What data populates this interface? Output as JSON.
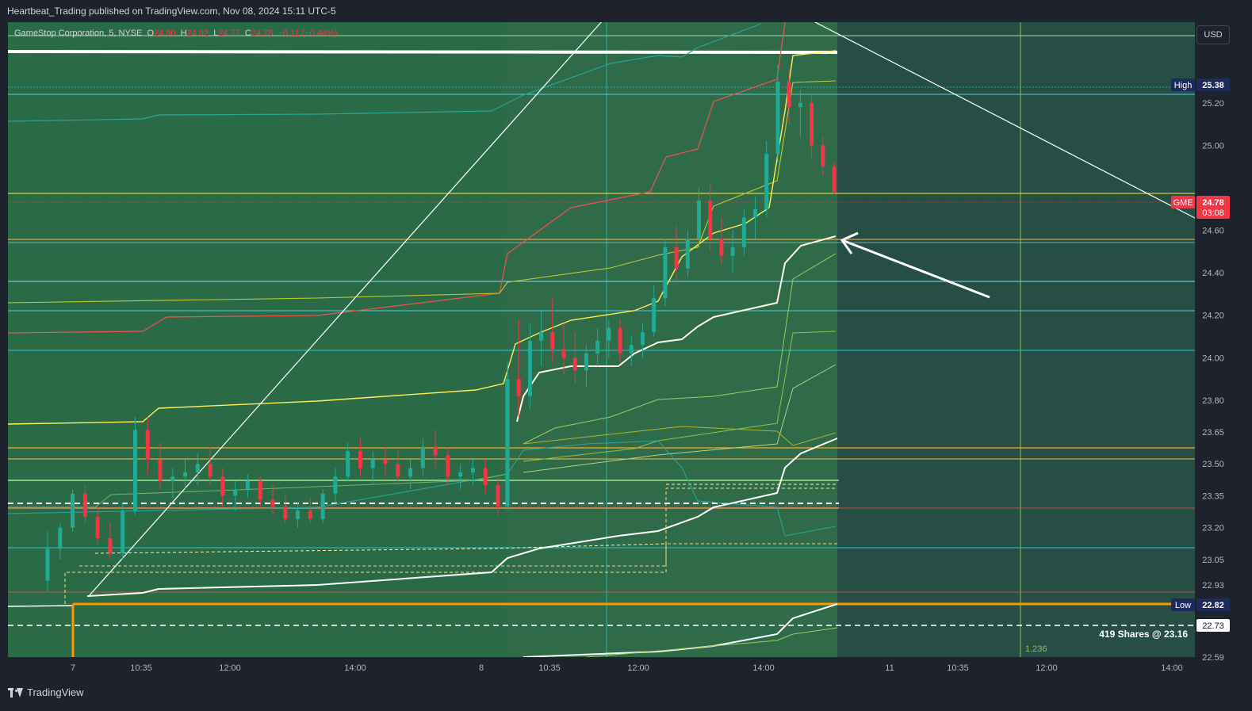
{
  "header": {
    "publish_text": "Heartbeat_Trading published on TradingView.com, Nov 08, 2024 15:11 UTC-5"
  },
  "legend": {
    "symbol": "GameStop Corporation, 5, NYSE",
    "o_label": "O",
    "o_value": "24.90",
    "h_label": "H",
    "h_value": "24.92",
    "l_label": "L",
    "l_value": "24.77",
    "c_label": "C",
    "c_value": "24.78",
    "change": "−0.11 (−0.44%)"
  },
  "currency": "USD",
  "footer": {
    "brand": "TradingView"
  },
  "colors": {
    "background_session": "#2b6a46",
    "background_future": "#264e45",
    "up_candle": "#22ab94",
    "down_candle": "#f23645",
    "axis_bg": "#1e222d"
  },
  "chart_data": {
    "type": "candlestick",
    "symbol": "GME",
    "interval": "5",
    "ylim": [
      22.59,
      25.58
    ],
    "y_ticks": [
      "25.20",
      "25.00",
      "24.60",
      "24.40",
      "24.20",
      "24.00",
      "23.80",
      "23.65",
      "23.50",
      "23.35",
      "23.20",
      "23.05",
      "22.93",
      "22.59"
    ],
    "x_ticks": [
      "7",
      "10:35",
      "12:00",
      "14:00",
      "8",
      "10:35",
      "12:00",
      "14:00",
      "11",
      "10:35",
      "12:00",
      "14:00"
    ],
    "price_labels": [
      {
        "label": "High",
        "value": "25.38"
      },
      {
        "label": "GME",
        "value": "24.78",
        "countdown": "03:08"
      },
      {
        "label": "Low",
        "value": "22.82"
      },
      {
        "label": "",
        "value": "22.73"
      }
    ],
    "annotations": [
      {
        "text": "419 Shares @ 23.16"
      },
      {
        "text": "1.236"
      }
    ],
    "candles": [
      [
        22.95,
        23.18,
        22.9,
        23.1
      ],
      [
        23.1,
        23.22,
        23.05,
        23.2
      ],
      [
        23.2,
        23.38,
        23.18,
        23.36
      ],
      [
        23.36,
        23.4,
        23.22,
        23.25
      ],
      [
        23.25,
        23.3,
        23.12,
        23.15
      ],
      [
        23.15,
        23.22,
        23.05,
        23.08
      ],
      [
        23.08,
        23.32,
        23.05,
        23.28
      ],
      [
        23.28,
        23.72,
        23.26,
        23.66
      ],
      [
        23.66,
        23.72,
        23.45,
        23.52
      ],
      [
        23.52,
        23.6,
        23.38,
        23.42
      ],
      [
        23.42,
        23.48,
        23.34,
        23.44
      ],
      [
        23.44,
        23.52,
        23.38,
        23.46
      ],
      [
        23.46,
        23.55,
        23.4,
        23.5
      ],
      [
        23.5,
        23.58,
        23.4,
        23.44
      ],
      [
        23.44,
        23.48,
        23.3,
        23.35
      ],
      [
        23.35,
        23.42,
        23.28,
        23.38
      ],
      [
        23.38,
        23.45,
        23.34,
        23.42
      ],
      [
        23.42,
        23.44,
        23.3,
        23.33
      ],
      [
        23.33,
        23.4,
        23.26,
        23.3
      ],
      [
        23.3,
        23.35,
        23.22,
        23.24
      ],
      [
        23.24,
        23.32,
        23.2,
        23.28
      ],
      [
        23.28,
        23.34,
        23.22,
        23.24
      ],
      [
        23.24,
        23.38,
        23.22,
        23.36
      ],
      [
        23.36,
        23.48,
        23.32,
        23.44
      ],
      [
        23.44,
        23.6,
        23.42,
        23.56
      ],
      [
        23.56,
        23.62,
        23.44,
        23.48
      ],
      [
        23.48,
        23.56,
        23.4,
        23.52
      ],
      [
        23.52,
        23.58,
        23.44,
        23.5
      ],
      [
        23.5,
        23.56,
        23.4,
        23.44
      ],
      [
        23.44,
        23.52,
        23.38,
        23.48
      ],
      [
        23.48,
        23.62,
        23.44,
        23.58
      ],
      [
        23.58,
        23.66,
        23.48,
        23.54
      ],
      [
        23.54,
        23.58,
        23.4,
        23.44
      ],
      [
        23.44,
        23.5,
        23.38,
        23.46
      ],
      [
        23.46,
        23.52,
        23.4,
        23.48
      ],
      [
        23.48,
        23.52,
        23.36,
        23.4
      ],
      [
        23.4,
        23.44,
        23.26,
        23.3
      ],
      [
        23.3,
        23.98,
        23.28,
        23.9
      ],
      [
        23.9,
        24.18,
        23.72,
        23.82
      ],
      [
        23.82,
        24.16,
        23.76,
        24.08
      ],
      [
        24.08,
        24.22,
        23.96,
        24.12
      ],
      [
        24.12,
        24.28,
        23.98,
        24.04
      ],
      [
        24.04,
        24.16,
        23.92,
        24.0
      ],
      [
        24.0,
        24.12,
        23.88,
        23.94
      ],
      [
        23.94,
        24.06,
        23.86,
        24.02
      ],
      [
        24.02,
        24.14,
        23.96,
        24.08
      ],
      [
        24.08,
        24.18,
        24.0,
        24.14
      ],
      [
        24.14,
        24.18,
        23.98,
        24.02
      ],
      [
        24.02,
        24.1,
        23.96,
        24.06
      ],
      [
        24.06,
        24.16,
        24.0,
        24.12
      ],
      [
        24.12,
        24.34,
        24.1,
        24.28
      ],
      [
        24.28,
        24.56,
        24.24,
        24.52
      ],
      [
        24.52,
        24.62,
        24.36,
        24.42
      ],
      [
        24.42,
        24.6,
        24.38,
        24.56
      ],
      [
        24.56,
        24.8,
        24.52,
        24.74
      ],
      [
        24.74,
        24.82,
        24.5,
        24.56
      ],
      [
        24.56,
        24.66,
        24.44,
        24.48
      ],
      [
        24.48,
        24.6,
        24.4,
        24.52
      ],
      [
        24.52,
        24.7,
        24.48,
        24.66
      ],
      [
        24.66,
        24.76,
        24.56,
        24.7
      ],
      [
        24.7,
        25.02,
        24.66,
        24.96
      ],
      [
        24.96,
        25.38,
        24.92,
        25.3
      ],
      [
        25.3,
        25.36,
        25.1,
        25.18
      ],
      [
        25.18,
        25.26,
        25.04,
        25.2
      ],
      [
        25.2,
        25.24,
        24.94,
        25.0
      ],
      [
        25.0,
        25.04,
        24.86,
        24.9
      ],
      [
        24.9,
        24.92,
        24.77,
        24.78
      ]
    ]
  }
}
